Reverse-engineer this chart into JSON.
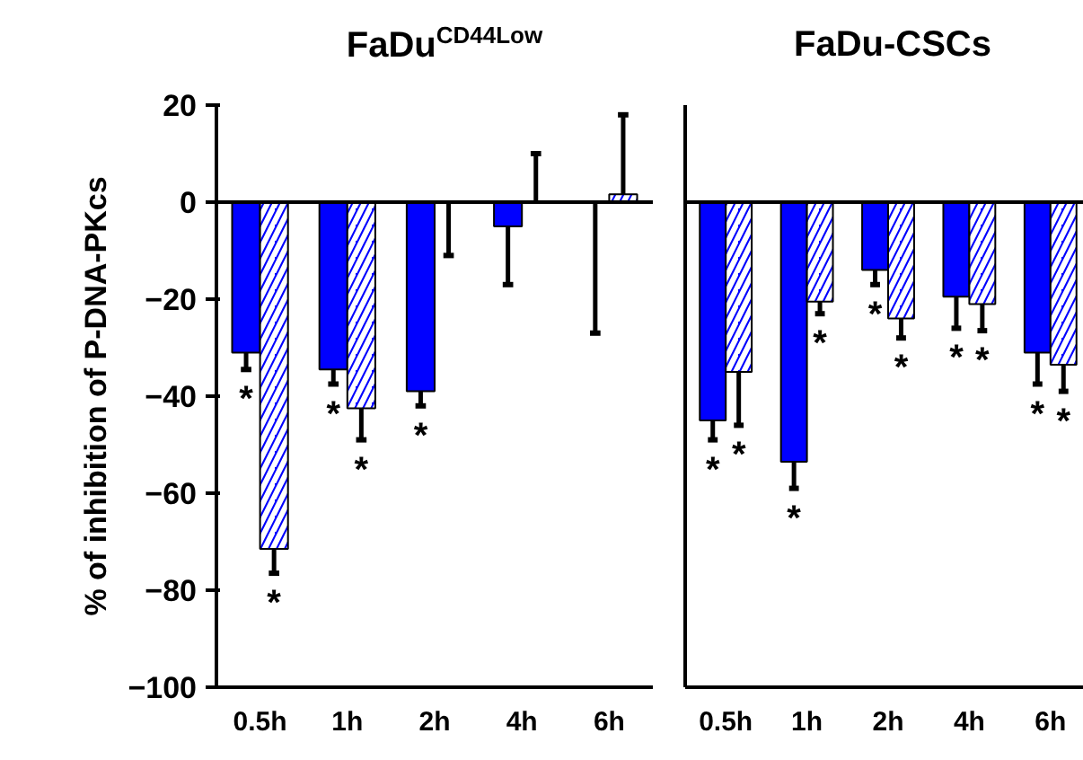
{
  "chart_data": [
    {
      "type": "bar",
      "title": "FaDu$^{CD44Low}$",
      "ylabel": "% of inhibition of P-DNA-PKcs",
      "categories": [
        "0.5h",
        "1h",
        "2h",
        "4h",
        "6h"
      ],
      "ylim": [
        -100,
        20
      ],
      "yticks": [
        -100,
        -80,
        -60,
        -40,
        -20,
        0,
        20
      ],
      "ref_lines": [
        {
          "axis": "y",
          "value": 0,
          "color": "#000000"
        }
      ],
      "series": [
        {
          "color": "#0000ff",
          "values": [
            -31,
            -34.5,
            -39,
            -5,
            0
          ],
          "errors": [
            [
              -34.5,
              -31
            ],
            [
              -37.5,
              -34.5
            ],
            [
              -42,
              -39
            ],
            [
              -17,
              -5
            ],
            [
              -27,
              0
            ]
          ]
        },
        {
          "color": "#0000ff",
          "values": [
            -71.5,
            -42.5,
            0,
            0,
            1.6
          ],
          "errors": [
            [
              -76.5,
              -71.5
            ],
            [
              -49,
              -42.5
            ],
            [
              -11,
              0
            ],
            [
              0,
              10
            ],
            [
              1.6,
              18
            ]
          ]
        }
      ],
      "annotations": [
        {
          "text": "*",
          "x": "0.5h",
          "y": -34.5
        },
        {
          "text": "*",
          "x": "0.5h",
          "y": -76.5
        },
        {
          "text": "*",
          "x": "1h",
          "y": -37.5
        },
        {
          "text": "*",
          "x": "1h",
          "y": -49
        },
        {
          "text": "*",
          "x": "2h",
          "y": -42
        }
      ]
    },
    {
      "type": "bar",
      "title": "FaDu-CSCs",
      "categories": [
        "0.5h",
        "1h",
        "2h",
        "4h",
        "6h"
      ],
      "ylim": [
        -100,
        20
      ],
      "yticks": [
        -100,
        -80,
        -60,
        -40,
        -20,
        0,
        20
      ],
      "tick_labels": "x",
      "ref_lines": [
        {
          "axis": "y",
          "value": 0,
          "color": "#000000"
        }
      ],
      "series": [
        {
          "color": "#0000ff",
          "values": [
            -45,
            -53.5,
            -14,
            -19.5,
            -31
          ],
          "errors": [
            [
              -49,
              -45
            ],
            [
              -59,
              -53.5
            ],
            [
              -17,
              -14
            ],
            [
              -26,
              -19.5
            ],
            [
              -37.5,
              -31
            ]
          ]
        },
        {
          "color": "#0000ff",
          "values": [
            -35,
            -20.5,
            -24,
            -21,
            -33.5
          ],
          "errors": [
            [
              -46,
              -35
            ],
            [
              -23,
              -20.5
            ],
            [
              -28,
              -24
            ],
            [
              -26.5,
              -21
            ],
            [
              -39,
              -33.5
            ]
          ]
        }
      ],
      "annotations": [
        {
          "text": "*",
          "x": "0.5h",
          "y": -49
        },
        {
          "text": "*",
          "x": "0.5h",
          "y": -46
        },
        {
          "text": "*",
          "x": "1h",
          "y": -59
        },
        {
          "text": "*",
          "x": "1h",
          "y": -23
        },
        {
          "text": "*",
          "x": "2h",
          "y": -17
        },
        {
          "text": "*",
          "x": "2h",
          "y": -28
        },
        {
          "text": "*",
          "x": "4h",
          "y": -26
        },
        {
          "text": "*",
          "x": "4h",
          "y": -26.5
        },
        {
          "text": "*",
          "x": "6h",
          "y": -37.5
        },
        {
          "text": "*",
          "x": "6h",
          "y": -39
        }
      ]
    }
  ]
}
